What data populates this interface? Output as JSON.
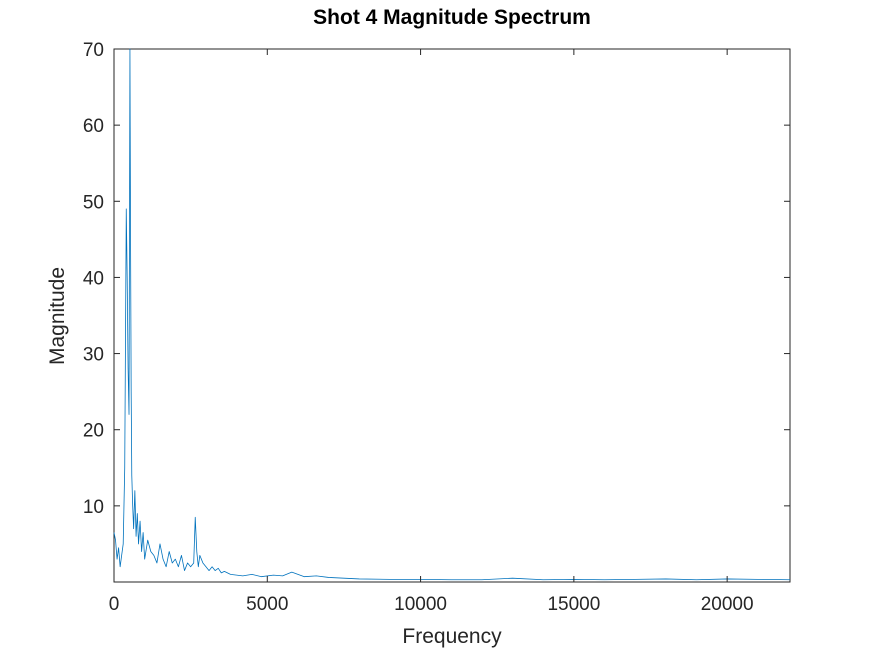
{
  "chart_data": {
    "type": "line",
    "title": "Shot 4 Magnitude Spectrum",
    "xlabel": "Frequency",
    "ylabel": "Magnitude",
    "xlim": [
      0,
      22050
    ],
    "ylim": [
      0,
      70
    ],
    "xticks": [
      0,
      5000,
      10000,
      15000,
      20000
    ],
    "xtick_labels": [
      "0",
      "5000",
      "10000",
      "15000",
      "20000"
    ],
    "yticks": [
      10,
      20,
      30,
      40,
      50,
      60,
      70
    ],
    "ytick_labels": [
      "10",
      "20",
      "30",
      "40",
      "50",
      "60",
      "70"
    ],
    "grid": false,
    "legend": "none",
    "series_color": "#0072bd",
    "axis_color": "#262626",
    "background": "#ffffff",
    "series": [
      {
        "x": [
          0,
          50,
          100,
          150,
          200,
          250,
          300,
          350,
          400,
          430,
          460,
          490,
          520,
          540,
          560,
          580,
          610,
          640,
          680,
          720,
          760,
          800,
          850,
          900,
          950,
          1000,
          1100,
          1200,
          1300,
          1400,
          1500,
          1600,
          1700,
          1800,
          1900,
          2000,
          2100,
          2200,
          2300,
          2400,
          2500,
          2600,
          2650,
          2700,
          2750,
          2800,
          2900,
          3000,
          3100,
          3200,
          3300,
          3400,
          3500,
          3600,
          3800,
          4000,
          4200,
          4500,
          4800,
          5200,
          5500,
          5800,
          6200,
          6600,
          7000,
          7500,
          8000,
          9000,
          10000,
          11000,
          12000,
          13000,
          14000,
          15000,
          16000,
          17000,
          18000,
          19000,
          20000,
          21000,
          22050
        ],
        "y": [
          6.5,
          5.5,
          3.0,
          4.5,
          2.0,
          3.5,
          5.0,
          15.0,
          49.0,
          40.0,
          28.0,
          22.0,
          70.0,
          45.0,
          25.0,
          14.0,
          10.0,
          7.0,
          12.0,
          6.0,
          9.0,
          5.0,
          8.0,
          4.0,
          6.5,
          3.0,
          5.5,
          4.0,
          3.5,
          2.5,
          5.0,
          3.0,
          2.0,
          4.0,
          2.5,
          3.0,
          2.0,
          3.5,
          1.5,
          2.5,
          2.0,
          2.5,
          8.5,
          4.0,
          2.0,
          3.5,
          2.5,
          2.0,
          1.5,
          2.0,
          1.5,
          1.8,
          1.2,
          1.4,
          1.0,
          0.9,
          0.8,
          1.0,
          0.7,
          0.9,
          0.8,
          1.3,
          0.7,
          0.8,
          0.6,
          0.5,
          0.4,
          0.35,
          0.35,
          0.3,
          0.3,
          0.5,
          0.3,
          0.35,
          0.3,
          0.35,
          0.4,
          0.3,
          0.4,
          0.35,
          0.3
        ]
      }
    ]
  }
}
